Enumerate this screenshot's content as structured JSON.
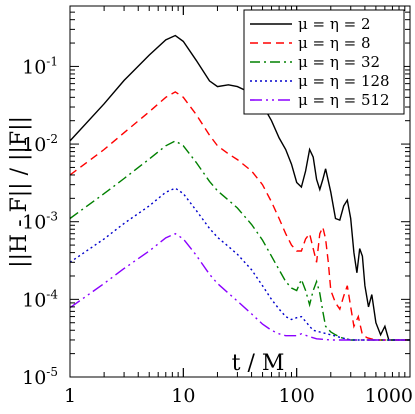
{
  "chart_data": {
    "type": "line",
    "xlabel": "t / M",
    "ylabel": "||H - F|| / ||F||",
    "xscale": "log",
    "yscale": "log",
    "xlim": [
      1,
      1000
    ],
    "ylim": [
      1e-05,
      0.6
    ],
    "grid": false,
    "legend_position": "top-right",
    "x_ticks": [
      {
        "value": 1,
        "label": "1"
      },
      {
        "value": 10,
        "label": "10"
      },
      {
        "value": 100,
        "label": "100"
      },
      {
        "value": 1000,
        "label": "1000"
      }
    ],
    "y_ticks": [
      {
        "value": 1e-05,
        "base": "10",
        "exp": "-5"
      },
      {
        "value": 0.0001,
        "base": "10",
        "exp": "-4"
      },
      {
        "value": 0.001,
        "base": "10",
        "exp": "-3"
      },
      {
        "value": 0.01,
        "base": "10",
        "exp": "-2"
      },
      {
        "value": 0.1,
        "base": "10",
        "exp": "-1"
      }
    ],
    "series": [
      {
        "name": "μ = η = 2",
        "color": "#000000",
        "dash": "solid",
        "points": [
          [
            1,
            0.011
          ],
          [
            2,
            0.033
          ],
          [
            3,
            0.066
          ],
          [
            5,
            0.14
          ],
          [
            7,
            0.22
          ],
          [
            8.5,
            0.25
          ],
          [
            10,
            0.21
          ],
          [
            13,
            0.12
          ],
          [
            17,
            0.065
          ],
          [
            20,
            0.055
          ],
          [
            25,
            0.058
          ],
          [
            30,
            0.055
          ],
          [
            40,
            0.045
          ],
          [
            50,
            0.032
          ],
          [
            60,
            0.02
          ],
          [
            70,
            0.012
          ],
          [
            80,
            0.0085
          ],
          [
            90,
            0.0055
          ],
          [
            100,
            0.0032
          ],
          [
            110,
            0.0028
          ],
          [
            120,
            0.0045
          ],
          [
            130,
            0.0085
          ],
          [
            140,
            0.0068
          ],
          [
            150,
            0.0035
          ],
          [
            160,
            0.0026
          ],
          [
            170,
            0.0035
          ],
          [
            180,
            0.0048
          ],
          [
            200,
            0.0024
          ],
          [
            220,
            0.0011
          ],
          [
            240,
            0.00105
          ],
          [
            260,
            0.0016
          ],
          [
            280,
            0.0019
          ],
          [
            300,
            0.0011
          ],
          [
            320,
            0.0004
          ],
          [
            340,
            0.00022
          ],
          [
            360,
            0.00045
          ],
          [
            380,
            0.00036
          ],
          [
            400,
            0.00015
          ],
          [
            430,
            8e-05
          ],
          [
            460,
            0.000115
          ],
          [
            500,
            5e-05
          ],
          [
            550,
            3.5e-05
          ],
          [
            600,
            4.5e-05
          ],
          [
            650,
            3e-05
          ],
          [
            1000,
            3e-05
          ]
        ]
      },
      {
        "name": "μ = η = 8",
        "color": "#ff0000",
        "dash": "8,5",
        "points": [
          [
            1,
            0.004
          ],
          [
            2,
            0.0085
          ],
          [
            3,
            0.014
          ],
          [
            5,
            0.026
          ],
          [
            7,
            0.04
          ],
          [
            8.5,
            0.047
          ],
          [
            10,
            0.04
          ],
          [
            13,
            0.024
          ],
          [
            17,
            0.013
          ],
          [
            20,
            0.0095
          ],
          [
            25,
            0.0075
          ],
          [
            30,
            0.0063
          ],
          [
            40,
            0.0045
          ],
          [
            50,
            0.003
          ],
          [
            60,
            0.0018
          ],
          [
            70,
            0.0011
          ],
          [
            80,
            0.0007
          ],
          [
            90,
            0.0005
          ],
          [
            100,
            0.00042
          ],
          [
            110,
            0.00042
          ],
          [
            120,
            0.0006
          ],
          [
            130,
            0.0007
          ],
          [
            140,
            0.00045
          ],
          [
            150,
            0.0003
          ],
          [
            160,
            0.0007
          ],
          [
            170,
            0.00085
          ],
          [
            180,
            0.0006
          ],
          [
            190,
            0.0003
          ],
          [
            200,
            0.00013
          ],
          [
            220,
            9e-05
          ],
          [
            240,
            7.5e-05
          ],
          [
            260,
            0.00011
          ],
          [
            280,
            0.00015
          ],
          [
            300,
            8e-05
          ],
          [
            320,
            4.5e-05
          ],
          [
            350,
            6e-05
          ],
          [
            380,
            3.5e-05
          ],
          [
            420,
            3.2e-05
          ],
          [
            500,
            3e-05
          ],
          [
            1000,
            3e-05
          ]
        ]
      },
      {
        "name": "μ = η = 32",
        "color": "#008000",
        "dash": "10,4,2,4",
        "points": [
          [
            1,
            0.0011
          ],
          [
            2,
            0.0023
          ],
          [
            3,
            0.0036
          ],
          [
            5,
            0.0064
          ],
          [
            7,
            0.0095
          ],
          [
            8.5,
            0.011
          ],
          [
            10,
            0.0095
          ],
          [
            13,
            0.0058
          ],
          [
            17,
            0.0033
          ],
          [
            20,
            0.0025
          ],
          [
            25,
            0.0019
          ],
          [
            30,
            0.0015
          ],
          [
            40,
            0.00092
          ],
          [
            50,
            0.00058
          ],
          [
            60,
            0.00036
          ],
          [
            70,
            0.00024
          ],
          [
            80,
            0.00017
          ],
          [
            90,
            0.00014
          ],
          [
            100,
            0.00013
          ],
          [
            110,
            0.00018
          ],
          [
            120,
            0.00013
          ],
          [
            130,
            8.5e-05
          ],
          [
            140,
            0.00013
          ],
          [
            150,
            0.00017
          ],
          [
            160,
            0.00012
          ],
          [
            170,
            7e-05
          ],
          [
            180,
            4.5e-05
          ],
          [
            200,
            3.8e-05
          ],
          [
            220,
            3.5e-05
          ],
          [
            250,
            3.2e-05
          ],
          [
            300,
            3e-05
          ],
          [
            1000,
            3e-05
          ]
        ]
      },
      {
        "name": "μ = η = 128",
        "color": "#0000cc",
        "dash": "2,3",
        "points": [
          [
            1,
            0.0003
          ],
          [
            2,
            0.0006
          ],
          [
            3,
            0.00095
          ],
          [
            5,
            0.0016
          ],
          [
            7,
            0.0024
          ],
          [
            8.5,
            0.0027
          ],
          [
            10,
            0.0023
          ],
          [
            13,
            0.0014
          ],
          [
            17,
            0.00082
          ],
          [
            20,
            0.00063
          ],
          [
            25,
            0.00048
          ],
          [
            30,
            0.00038
          ],
          [
            40,
            0.00024
          ],
          [
            50,
            0.00015
          ],
          [
            60,
            0.0001
          ],
          [
            70,
            7.5e-05
          ],
          [
            80,
            6e-05
          ],
          [
            90,
            5.5e-05
          ],
          [
            100,
            5.8e-05
          ],
          [
            110,
            6e-05
          ],
          [
            120,
            5.2e-05
          ],
          [
            130,
            4.5e-05
          ],
          [
            140,
            4e-05
          ],
          [
            160,
            3.8e-05
          ],
          [
            200,
            3.5e-05
          ],
          [
            250,
            3.2e-05
          ],
          [
            300,
            3e-05
          ],
          [
            1000,
            3e-05
          ]
        ]
      },
      {
        "name": "μ = η = 512",
        "color": "#8b00ff",
        "dash": "12,4,2,4,2,4",
        "points": [
          [
            1,
            7.8e-05
          ],
          [
            2,
            0.00016
          ],
          [
            3,
            0.00025
          ],
          [
            5,
            0.00042
          ],
          [
            7,
            0.00062
          ],
          [
            8.5,
            0.0007
          ],
          [
            10,
            0.0006
          ],
          [
            13,
            0.00037
          ],
          [
            17,
            0.00021
          ],
          [
            20,
            0.00016
          ],
          [
            25,
            0.00012
          ],
          [
            30,
            9.5e-05
          ],
          [
            40,
            6.5e-05
          ],
          [
            50,
            4.8e-05
          ],
          [
            60,
            4e-05
          ],
          [
            70,
            3.6e-05
          ],
          [
            80,
            3.4e-05
          ],
          [
            100,
            3.4e-05
          ],
          [
            110,
            3.6e-05
          ],
          [
            130,
            3.3e-05
          ],
          [
            150,
            3.1e-05
          ],
          [
            200,
            3e-05
          ],
          [
            1000,
            3e-05
          ]
        ]
      }
    ]
  }
}
